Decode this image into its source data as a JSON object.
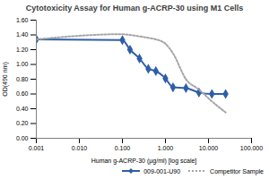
{
  "chart_data": {
    "type": "line",
    "title": "Cytotoxicity Assay for Human g-ACRP-30 using M1 Cells",
    "x_label": "Human g-ACRP-30 (µg/ml) [log scale]",
    "y_label": "OD(490 nm)",
    "log": "x",
    "grid": false,
    "legend": "bottom-right",
    "x": [
      0.001,
      0.1,
      0.15,
      0.25,
      0.4,
      0.6,
      1.0,
      1.5,
      3,
      6,
      12,
      25
    ],
    "series": [
      {
        "name": "009-001-U90",
        "color": "#2e5fa8",
        "marker": "diamond",
        "line_style": "solid",
        "values": [
          1.34,
          1.33,
          1.2,
          1.08,
          0.94,
          0.91,
          0.81,
          0.69,
          0.68,
          0.62,
          0.6,
          0.6
        ]
      },
      {
        "name": "Competitor Sample",
        "color": "#a6a6a6",
        "marker": "none",
        "line_style": "dotted",
        "values": [
          1.34,
          1.41,
          1.4,
          1.38,
          1.36,
          1.34,
          1.28,
          1.15,
          0.8,
          0.66,
          0.5,
          0.35
        ]
      }
    ],
    "xlim": [
      0.001,
      100
    ],
    "xticks": [
      {
        "value": 0.001,
        "label": "0.001"
      },
      {
        "value": 0.01,
        "label": "0.010"
      },
      {
        "value": 0.1,
        "label": "0.100"
      },
      {
        "value": 1,
        "label": "1.000"
      },
      {
        "value": 10,
        "label": "10.000"
      },
      {
        "value": 100,
        "label": "100.000"
      }
    ],
    "ylim": [
      0,
      1.6
    ],
    "yticks": [
      {
        "value": 0,
        "label": "0.00"
      },
      {
        "value": 0.2,
        "label": "0.20"
      },
      {
        "value": 0.4,
        "label": "0.40"
      },
      {
        "value": 0.6,
        "label": "0.60"
      },
      {
        "value": 0.8,
        "label": "0.80"
      },
      {
        "value": 1.0,
        "label": "1.00"
      },
      {
        "value": 1.2,
        "label": "1.20"
      },
      {
        "value": 1.4,
        "label": "1.40"
      },
      {
        "value": 1.6,
        "label": "1.60"
      }
    ]
  }
}
